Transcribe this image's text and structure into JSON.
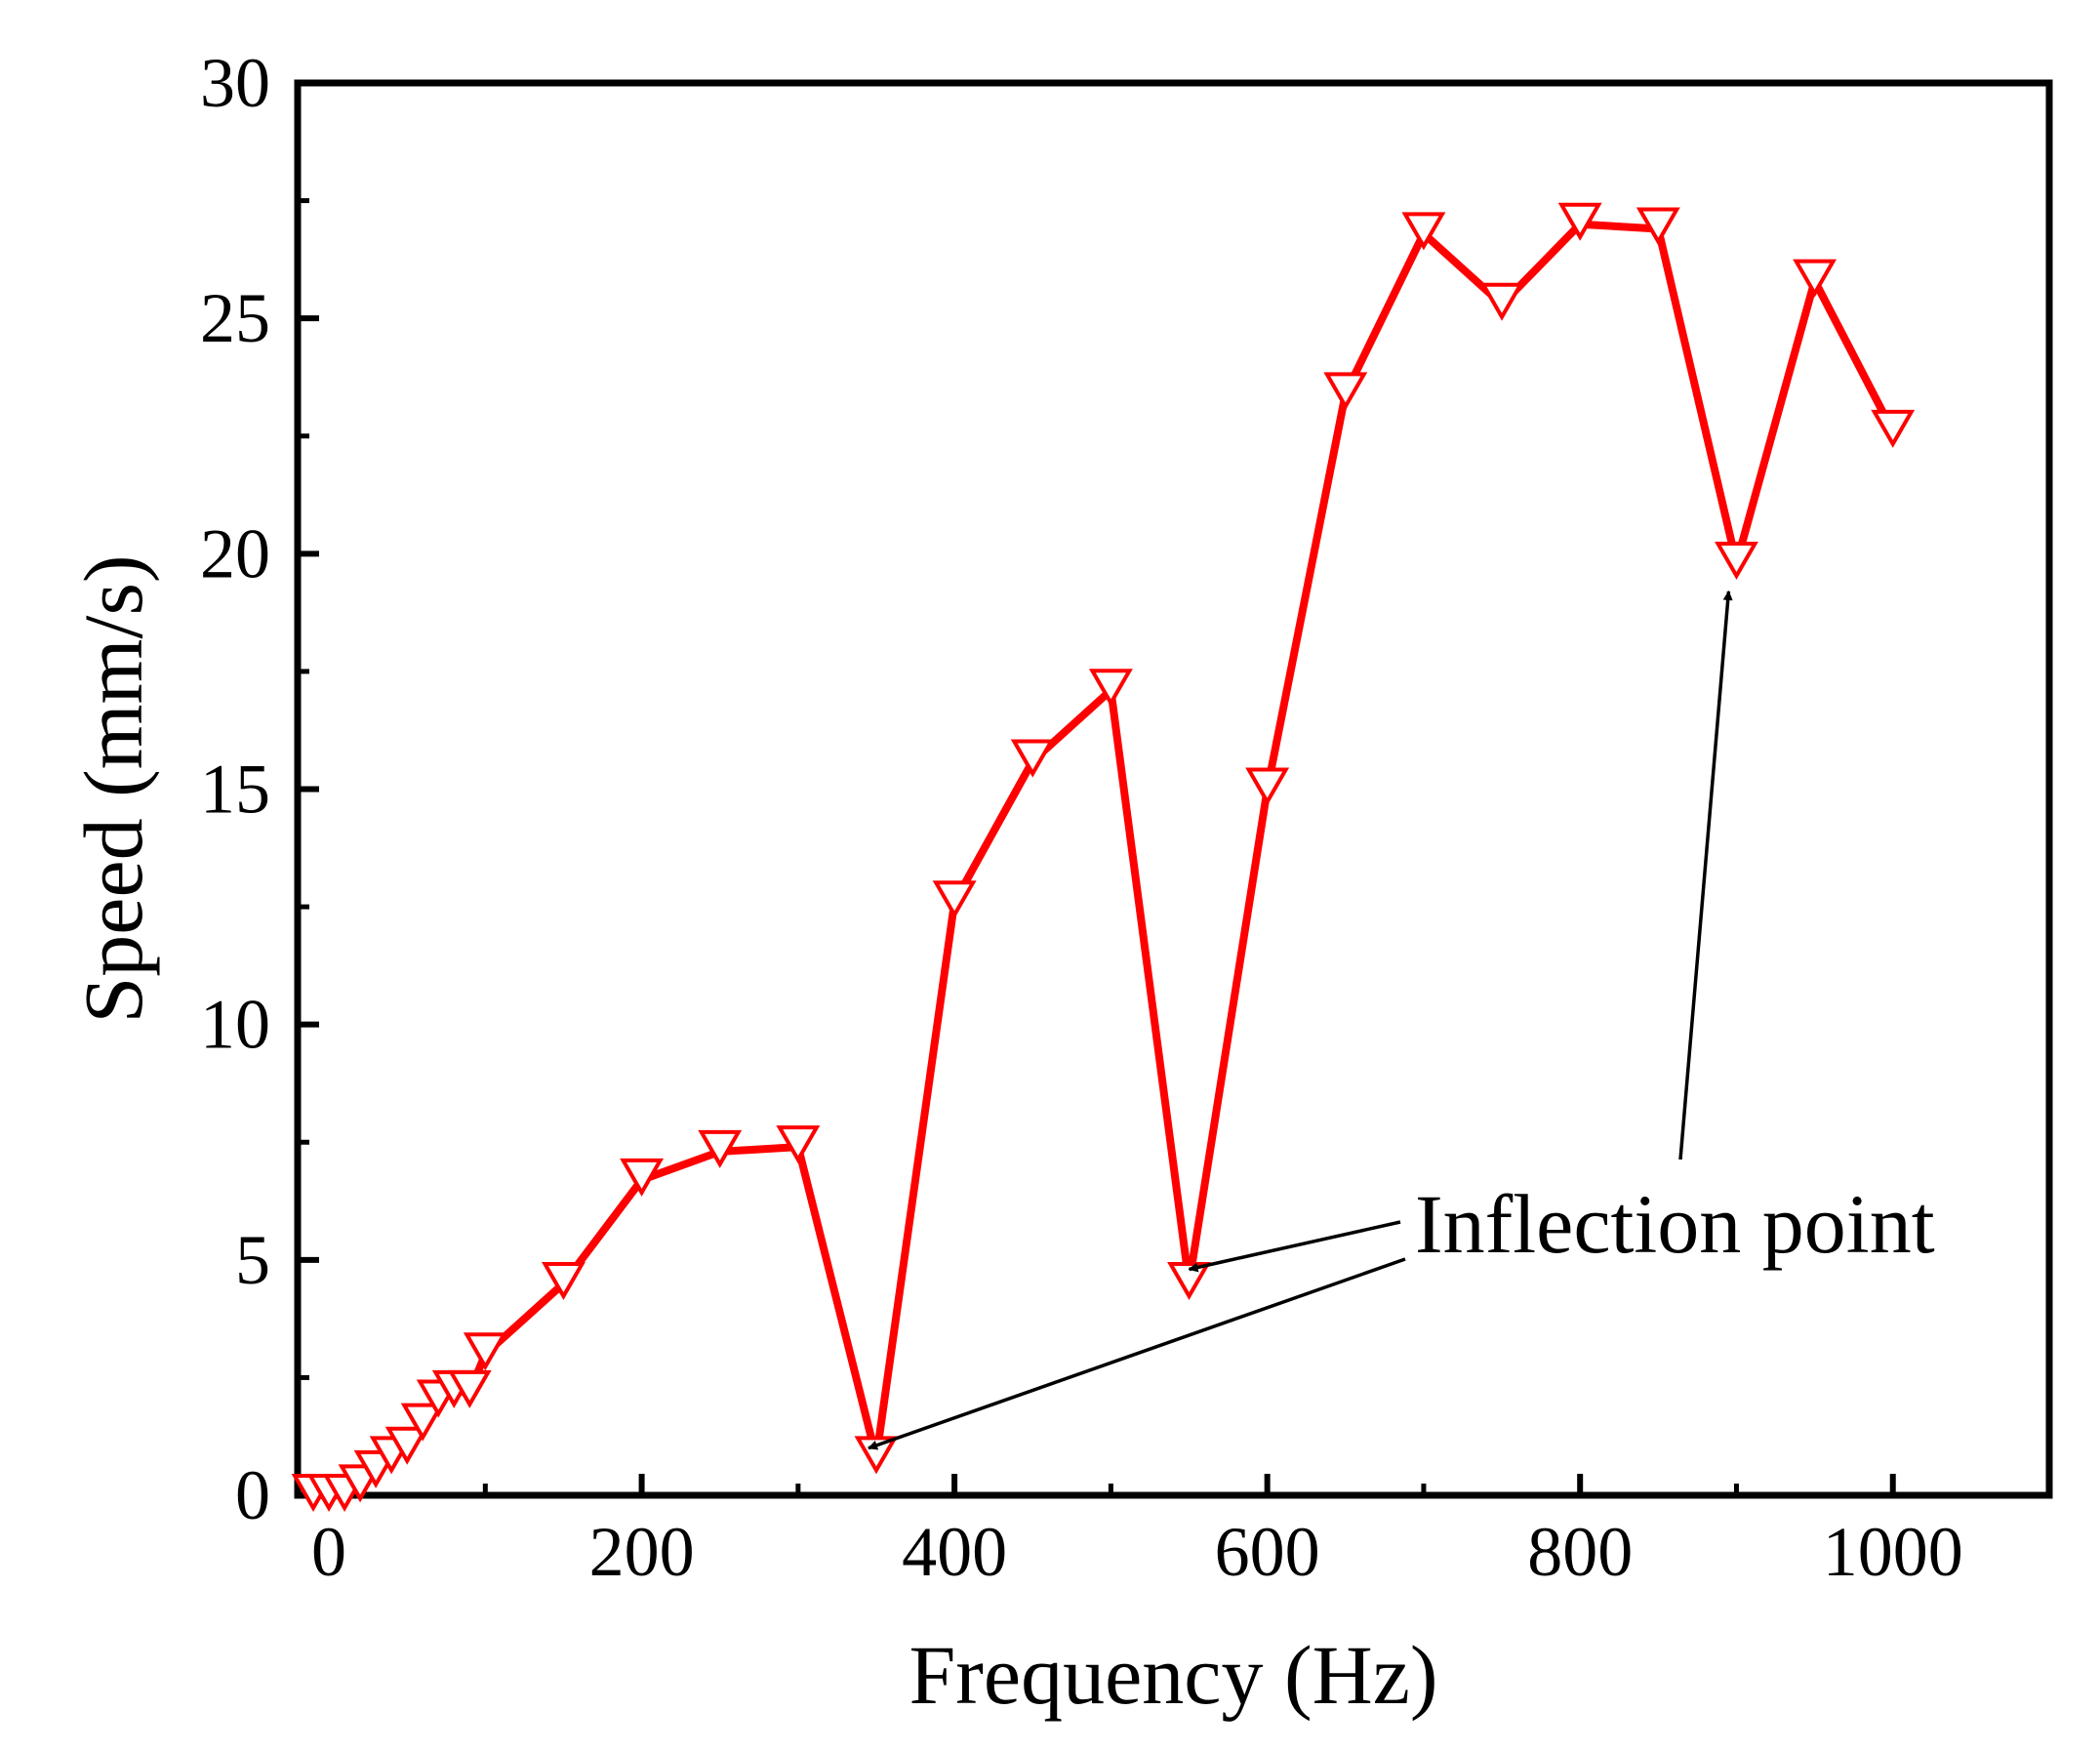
{
  "chart_data": {
    "type": "line",
    "title": "",
    "xlabel": "Frequency (Hz)",
    "ylabel": "Speed (mm/s)",
    "xlim": [
      -20,
      1100
    ],
    "ylim": [
      0,
      30
    ],
    "xticks": [
      0,
      200,
      400,
      600,
      800,
      1000
    ],
    "xtick_labels": [
      "0",
      "200",
      "400",
      "600",
      "800",
      "1000"
    ],
    "yticks": [
      0,
      5,
      10,
      15,
      20,
      25,
      30
    ],
    "ytick_labels": [
      "0",
      "5",
      "10",
      "15",
      "20",
      "25",
      "30"
    ],
    "grid": false,
    "series": [
      {
        "name": "Speed",
        "color": "#ff0000",
        "marker": "open-down-triangle",
        "x": [
          -10,
          0,
          10,
          20,
          30,
          40,
          50,
          60,
          70,
          80,
          90,
          100,
          150,
          200,
          250,
          300,
          350,
          400,
          450,
          500,
          550,
          600,
          650,
          700,
          750,
          800,
          850,
          900,
          950,
          1000
        ],
        "y": [
          0,
          0,
          0,
          0.2,
          0.5,
          0.8,
          1.0,
          1.5,
          2.0,
          2.2,
          2.2,
          3.0,
          4.5,
          6.7,
          7.3,
          7.4,
          0.8,
          12.6,
          15.6,
          17.1,
          4.5,
          15.0,
          23.4,
          26.8,
          25.3,
          27.0,
          26.9,
          19.8,
          25.8,
          22.6
        ]
      }
    ],
    "annotations": [
      {
        "text": "Inflection point",
        "points_to": [
          {
            "x": 345,
            "y": 1.0
          },
          {
            "x": 550,
            "y": 4.8
          },
          {
            "x": 895,
            "y": 19.2
          }
        ]
      }
    ]
  }
}
